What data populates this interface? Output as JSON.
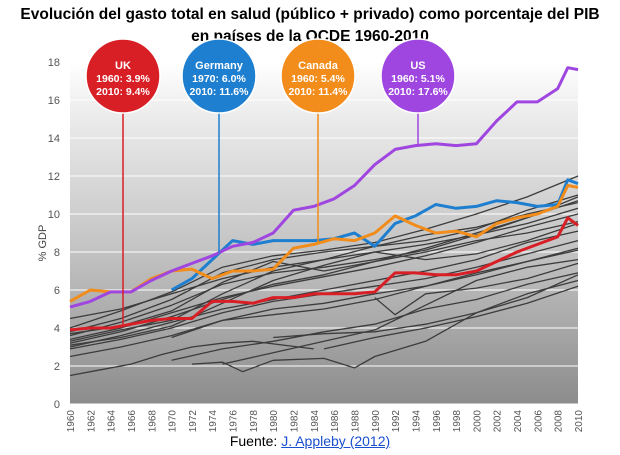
{
  "title_line1": "Evolución del gasto total en salud (público + privado) como porcentaje del PIB",
  "title_line2": "en países de la OCDE 1960-2010",
  "source_label": "Fuente:",
  "source_link": "J. Appleby (2012)",
  "chart_data": {
    "type": "line",
    "ylabel": "% GDP",
    "xlabel": "",
    "xlim": [
      1960,
      2010
    ],
    "ylim": [
      0,
      18
    ],
    "x_ticks": [
      1960,
      1962,
      1964,
      1966,
      1968,
      1970,
      1972,
      1974,
      1976,
      1978,
      1980,
      1982,
      1984,
      1986,
      1988,
      1990,
      1992,
      1994,
      1996,
      1998,
      2000,
      2002,
      2004,
      2006,
      2008,
      2010
    ],
    "y_ticks": [
      0,
      2,
      4,
      6,
      8,
      10,
      12,
      14,
      16,
      18
    ],
    "grid": true,
    "colors": {
      "UK": "#d81f26",
      "Germany": "#1e7fd0",
      "Canada": "#f28c1a",
      "US": "#a046e0",
      "background": "#1a1a1a",
      "grid": "#ffffff",
      "others": "#3c3c3c"
    },
    "annotations": [
      {
        "country": "UK",
        "line1": "1960: 3.9%",
        "line2": "2010: 9.4%",
        "color": "#d81f26"
      },
      {
        "country": "Germany",
        "line1": "1970: 6.0%",
        "line2": "2010: 11.6%",
        "color": "#1e7fd0"
      },
      {
        "country": "Canada",
        "line1": "1960: 5.4%",
        "line2": "2010: 11.4%",
        "color": "#f28c1a"
      },
      {
        "country": "US",
        "line1": "1960: 5.1%",
        "line2": "2010: 17.6%",
        "color": "#a046e0"
      }
    ],
    "highlighted_series": [
      {
        "name": "UK",
        "color": "#d81f26",
        "x": [
          1960,
          1962,
          1964,
          1966,
          1968,
          1970,
          1972,
          1974,
          1976,
          1978,
          1980,
          1982,
          1984,
          1986,
          1988,
          1990,
          1992,
          1994,
          1996,
          1998,
          2000,
          2002,
          2004,
          2006,
          2008,
          2009,
          2010
        ],
        "values": [
          3.9,
          4.0,
          4.0,
          4.2,
          4.4,
          4.5,
          4.5,
          5.4,
          5.4,
          5.3,
          5.6,
          5.6,
          5.8,
          5.8,
          5.8,
          5.9,
          6.9,
          6.9,
          6.8,
          6.8,
          7.0,
          7.5,
          8.0,
          8.4,
          8.8,
          9.8,
          9.4
        ]
      },
      {
        "name": "Germany",
        "color": "#1e7fd0",
        "x": [
          1970,
          1972,
          1974,
          1976,
          1978,
          1980,
          1982,
          1984,
          1986,
          1988,
          1990,
          1992,
          1994,
          1996,
          1998,
          2000,
          2002,
          2004,
          2006,
          2008,
          2009,
          2010
        ],
        "values": [
          6.0,
          6.6,
          7.6,
          8.6,
          8.4,
          8.6,
          8.6,
          8.6,
          8.7,
          9.0,
          8.3,
          9.5,
          9.9,
          10.5,
          10.3,
          10.4,
          10.7,
          10.6,
          10.4,
          10.5,
          11.8,
          11.6
        ]
      },
      {
        "name": "Canada",
        "color": "#f28c1a",
        "x": [
          1960,
          1962,
          1964,
          1966,
          1968,
          1970,
          1972,
          1974,
          1976,
          1978,
          1980,
          1982,
          1984,
          1986,
          1988,
          1990,
          1992,
          1994,
          1996,
          1998,
          2000,
          2002,
          2004,
          2006,
          2008,
          2009,
          2010
        ],
        "values": [
          5.4,
          6.0,
          5.9,
          5.9,
          6.6,
          7.0,
          7.1,
          6.6,
          7.0,
          7.0,
          7.1,
          8.2,
          8.4,
          8.7,
          8.6,
          9.0,
          9.9,
          9.4,
          9.0,
          9.1,
          8.8,
          9.5,
          9.8,
          10.0,
          10.4,
          11.5,
          11.4
        ]
      },
      {
        "name": "US",
        "color": "#a046e0",
        "x": [
          1960,
          1962,
          1964,
          1966,
          1968,
          1970,
          1972,
          1974,
          1976,
          1978,
          1980,
          1982,
          1984,
          1986,
          1988,
          1990,
          1992,
          1994,
          1996,
          1998,
          2000,
          2002,
          2004,
          2006,
          2008,
          2009,
          2010
        ],
        "values": [
          5.1,
          5.4,
          5.9,
          5.9,
          6.5,
          7.0,
          7.4,
          7.8,
          8.3,
          8.5,
          9.0,
          10.2,
          10.4,
          10.8,
          11.5,
          12.6,
          13.4,
          13.6,
          13.7,
          13.6,
          13.7,
          14.9,
          15.9,
          15.9,
          16.6,
          17.7,
          17.6
        ]
      }
    ],
    "other_series": [
      {
        "x": [
          1960,
          1965,
          1970,
          1975,
          1980,
          1985,
          1990,
          1995,
          2000,
          2005,
          2010
        ],
        "values": [
          3.0,
          3.6,
          4.3,
          5.0,
          5.5,
          6.0,
          6.5,
          7.0,
          7.6,
          8.5,
          9.1
        ]
      },
      {
        "x": [
          1960,
          1965,
          1970,
          1975,
          1980,
          1985,
          1990,
          1995,
          2000,
          2005,
          2010
        ],
        "values": [
          3.4,
          4.0,
          4.8,
          5.6,
          6.2,
          6.7,
          7.2,
          7.8,
          8.5,
          9.3,
          10.0
        ]
      },
      {
        "x": [
          1960,
          1965,
          1970,
          1975,
          1980,
          1985,
          1990,
          1995,
          2000,
          2005,
          2010
        ],
        "values": [
          3.6,
          4.3,
          5.2,
          6.3,
          6.9,
          7.2,
          7.6,
          8.1,
          8.9,
          9.8,
          10.7
        ]
      },
      {
        "x": [
          1960,
          1965,
          1970,
          1975,
          1980,
          1985,
          1990,
          1995,
          2000,
          2005,
          2010
        ],
        "values": [
          2.9,
          3.4,
          4.0,
          4.8,
          5.4,
          5.8,
          6.2,
          6.6,
          7.2,
          7.9,
          8.6
        ]
      },
      {
        "x": [
          1960,
          1965,
          1970,
          1975,
          1980,
          1985,
          1990,
          1995,
          2000,
          2005,
          2010
        ],
        "values": [
          4.5,
          5.0,
          5.8,
          6.6,
          7.2,
          7.6,
          8.0,
          8.4,
          8.9,
          9.5,
          10.3
        ]
      },
      {
        "x": [
          1960,
          1965,
          1970,
          1975,
          1980,
          1985,
          1990,
          1995,
          2000,
          2005,
          2010
        ],
        "values": [
          3.2,
          3.8,
          4.6,
          5.5,
          6.3,
          6.8,
          7.5,
          8.2,
          9.0,
          9.8,
          10.9
        ]
      },
      {
        "x": [
          1960,
          1965,
          1970,
          1975,
          1980,
          1985,
          1990,
          1995,
          2000,
          2005,
          2010
        ],
        "values": [
          3.8,
          4.5,
          5.5,
          6.9,
          7.6,
          8.0,
          8.3,
          8.6,
          9.2,
          10.2,
          11.0
        ]
      },
      {
        "x": [
          1960,
          1965,
          1970,
          1975,
          1980,
          1985,
          1990,
          1995,
          2000,
          2005,
          2010
        ],
        "values": [
          2.5,
          3.0,
          3.6,
          4.4,
          5.0,
          5.3,
          5.8,
          6.2,
          6.8,
          7.5,
          8.1
        ]
      },
      {
        "x": [
          1960,
          1965,
          1970,
          1975,
          1980,
          1985,
          1990,
          1995,
          2000,
          2005,
          2010
        ],
        "values": [
          4.0,
          4.9,
          5.9,
          7.2,
          7.8,
          8.1,
          8.5,
          9.2,
          10.0,
          10.9,
          12.0
        ]
      },
      {
        "x": [
          1960,
          1965,
          1970,
          1975,
          1980,
          1985,
          1990,
          1995,
          2000,
          2005,
          2010
        ],
        "values": [
          3.1,
          3.5,
          4.1,
          5.3,
          6.5,
          7.3,
          8.0,
          7.6,
          7.9,
          8.6,
          9.5
        ]
      },
      {
        "x": [
          1960,
          1965,
          1970,
          1975,
          1980,
          1985,
          1990,
          1995,
          2000,
          2005,
          2010
        ],
        "values": [
          3.7,
          4.1,
          4.9,
          6.4,
          7.5,
          7.0,
          7.5,
          8.0,
          8.6,
          9.0,
          9.6
        ]
      },
      {
        "x": [
          1960,
          1965,
          1970,
          1975,
          1980,
          1985,
          1990,
          1995,
          2000,
          2005,
          2010
        ],
        "values": [
          3.3,
          3.9,
          4.4,
          5.8,
          7.0,
          7.6,
          8.3,
          8.9,
          9.3,
          10.0,
          10.6
        ]
      },
      {
        "x": [
          1970,
          1975,
          1980,
          1985,
          1990,
          1995,
          2000,
          2005,
          2010
        ],
        "values": [
          3.5,
          4.4,
          4.7,
          5.0,
          5.5,
          6.2,
          6.9,
          7.5,
          8.2
        ]
      },
      {
        "x": [
          1970,
          1975,
          1980,
          1985,
          1990,
          1995,
          2000,
          2005,
          2010
        ],
        "values": [
          2.3,
          2.9,
          3.3,
          3.8,
          4.2,
          5.0,
          5.5,
          6.3,
          6.9
        ]
      },
      {
        "x": [
          1980,
          1985,
          1990,
          1995,
          2000,
          2005,
          2010
        ],
        "values": [
          3.5,
          3.7,
          3.8,
          4.2,
          4.8,
          5.8,
          6.5
        ]
      },
      {
        "x": [
          1972,
          1975,
          1977,
          1980,
          1985,
          1988,
          1990,
          1995,
          2000,
          2005,
          2010
        ],
        "values": [
          2.1,
          2.2,
          1.7,
          2.3,
          2.4,
          1.9,
          2.5,
          3.3,
          4.8,
          5.6,
          6.8
        ]
      },
      {
        "x": [
          1960,
          1963,
          1966,
          1969,
          1972,
          1975,
          1978,
          1981,
          1984
        ],
        "values": [
          1.5,
          1.8,
          2.1,
          2.6,
          3.0,
          3.2,
          3.3,
          3.1,
          2.9
        ]
      },
      {
        "x": [
          1985,
          1990,
          1995,
          2000,
          2005,
          2010
        ],
        "values": [
          2.9,
          3.5,
          4.0,
          4.6,
          5.3,
          6.2
        ]
      },
      {
        "x": [
          1990,
          1992,
          1995,
          2000,
          2005,
          2010
        ],
        "values": [
          5.6,
          4.7,
          5.8,
          6.1,
          6.6,
          7.4
        ]
      },
      {
        "x": [
          1975,
          1980,
          1985,
          1990,
          1995,
          2000,
          2005,
          2010
        ],
        "values": [
          2.1,
          2.7,
          3.3,
          3.9,
          5.2,
          6.5,
          7.2,
          7.6
        ]
      }
    ]
  }
}
